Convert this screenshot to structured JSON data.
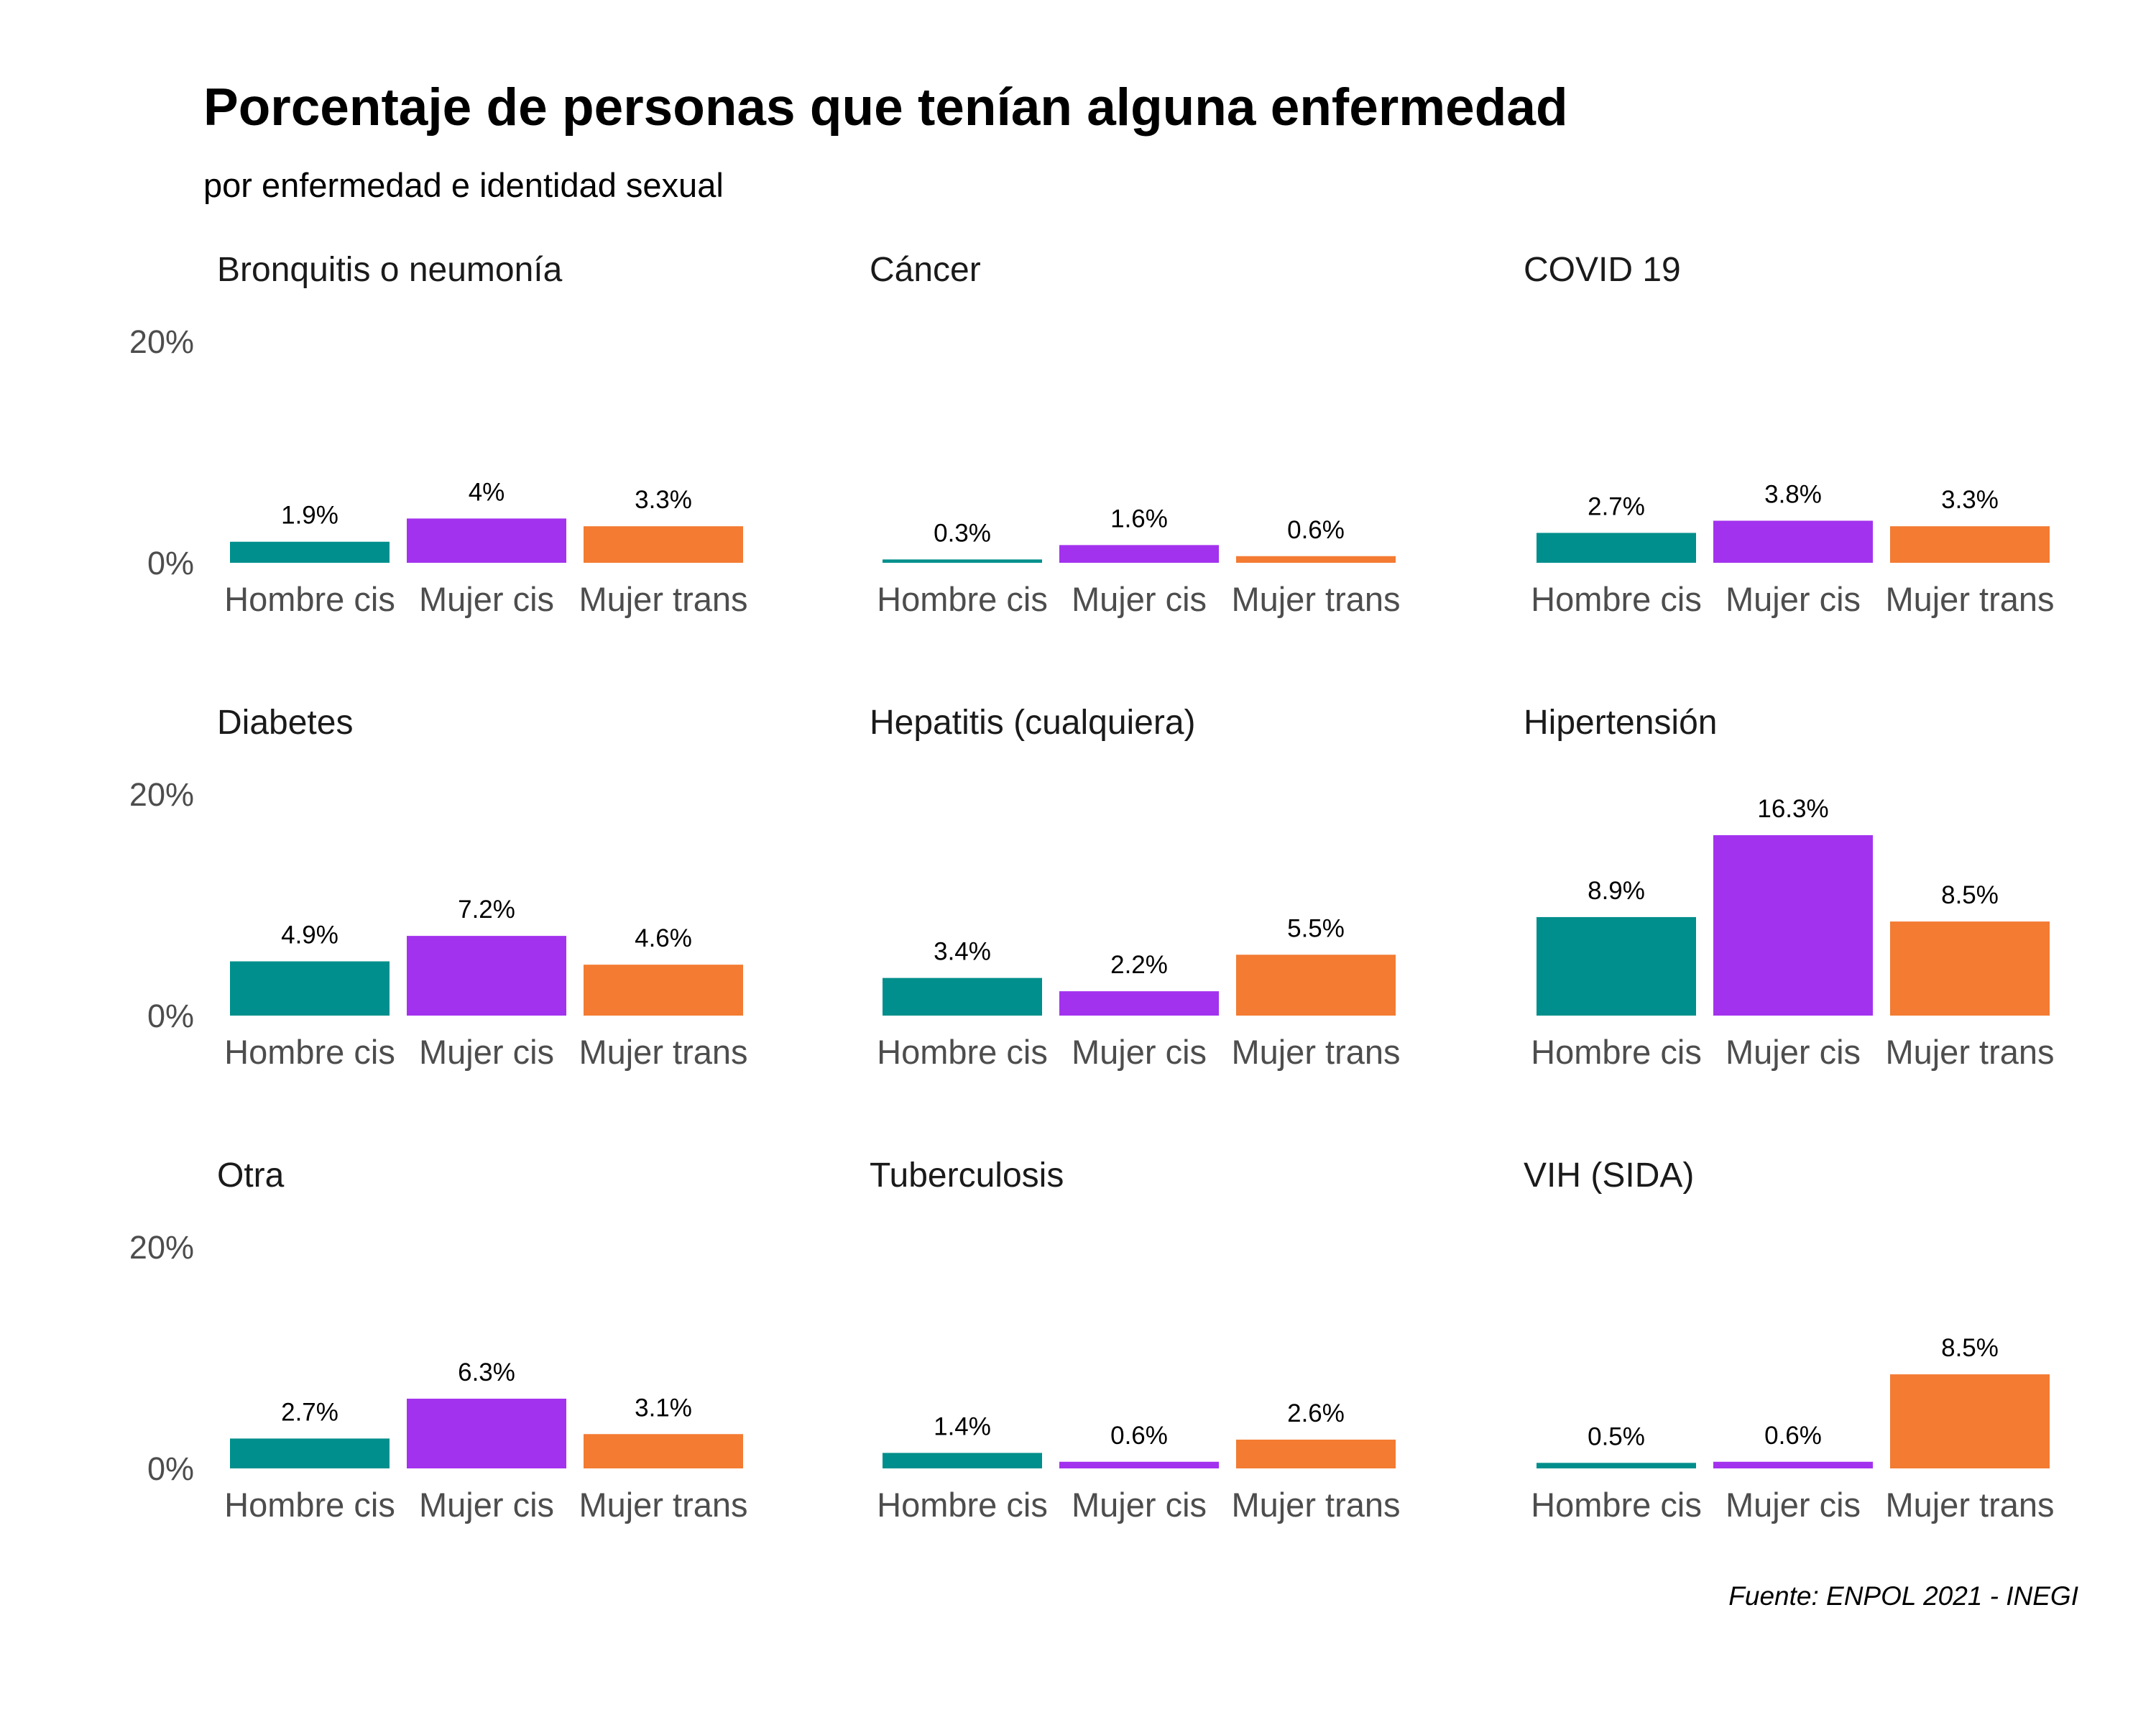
{
  "title": "Porcentaje de personas que tenían alguna enfermedad",
  "subtitle": "por enfermedad e identidad sexual",
  "caption": "Fuente: ENPOL 2021 - INEGI",
  "colors": {
    "Hombre cis": "#008f8c",
    "Mujer cis": "#a332ee",
    "Mujer trans": "#f37b32"
  },
  "chart_data": {
    "type": "bar",
    "layout": "facet-grid-3x3",
    "categories": [
      "Hombre cis",
      "Mujer cis",
      "Mujer trans"
    ],
    "ylim": [
      0,
      20
    ],
    "yticks": [
      0,
      20
    ],
    "ytick_labels": [
      "0%",
      "20%"
    ],
    "grid": false,
    "panels": [
      {
        "name": "Bronquitis o neumonía",
        "values": [
          1.9,
          4.0,
          3.3
        ],
        "labels": [
          "1.9%",
          "4%",
          "3.3%"
        ]
      },
      {
        "name": "Cáncer",
        "values": [
          0.3,
          1.6,
          0.6
        ],
        "labels": [
          "0.3%",
          "1.6%",
          "0.6%"
        ]
      },
      {
        "name": "COVID 19",
        "values": [
          2.7,
          3.8,
          3.3
        ],
        "labels": [
          "2.7%",
          "3.8%",
          "3.3%"
        ]
      },
      {
        "name": "Diabetes",
        "values": [
          4.9,
          7.2,
          4.6
        ],
        "labels": [
          "4.9%",
          "7.2%",
          "4.6%"
        ]
      },
      {
        "name": "Hepatitis (cualquiera)",
        "values": [
          3.4,
          2.2,
          5.5
        ],
        "labels": [
          "3.4%",
          "2.2%",
          "5.5%"
        ]
      },
      {
        "name": "Hipertensión",
        "values": [
          8.9,
          16.3,
          8.5
        ],
        "labels": [
          "8.9%",
          "16.3%",
          "8.5%"
        ]
      },
      {
        "name": "Otra",
        "values": [
          2.7,
          6.3,
          3.1
        ],
        "labels": [
          "2.7%",
          "6.3%",
          "3.1%"
        ]
      },
      {
        "name": "Tuberculosis",
        "values": [
          1.4,
          0.6,
          2.6
        ],
        "labels": [
          "1.4%",
          "0.6%",
          "2.6%"
        ]
      },
      {
        "name": "VIH (SIDA)",
        "values": [
          0.5,
          0.6,
          8.5
        ],
        "labels": [
          "0.5%",
          "0.6%",
          "8.5%"
        ]
      }
    ]
  }
}
